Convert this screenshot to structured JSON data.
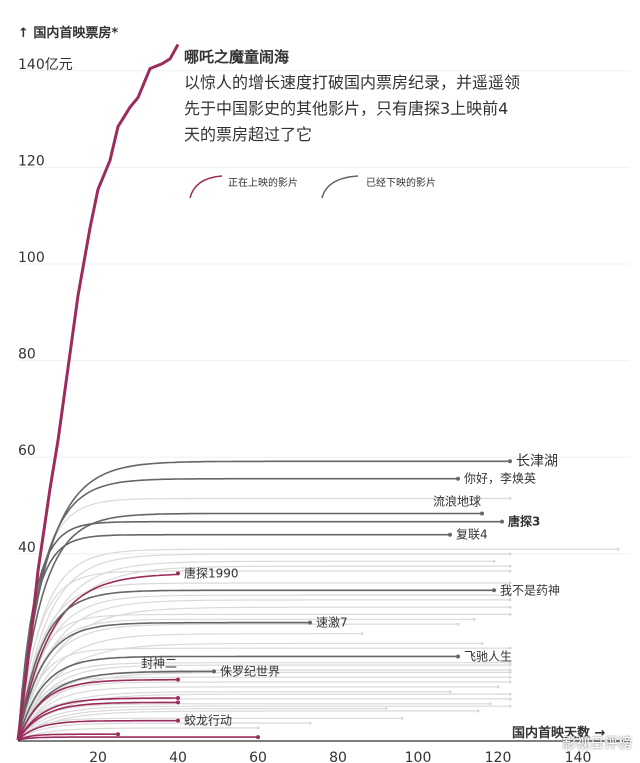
{
  "chart_data": {
    "type": "line",
    "title": "哪吒之魔童闹海",
    "subtitle": "以惊人的增长速度打破国内票房纪录，并遥遥领先于中国影史的其他影片，只有唐探3上映前4天的票房超过了它",
    "ylabel": "↑ 国内首映票房*",
    "xlabel": "国内首映天数 →",
    "xlim": [
      0,
      150
    ],
    "ylim": [
      0,
      145
    ],
    "xticks": [
      "20",
      "40",
      "60",
      "80",
      "100",
      "120",
      "140"
    ],
    "yticks": [
      {
        "v": 140,
        "t": "140亿元"
      },
      {
        "v": 120,
        "t": "120"
      },
      {
        "v": 100,
        "t": "100"
      },
      {
        "v": 80,
        "t": "80"
      },
      {
        "v": 60,
        "t": "60"
      },
      {
        "v": 40,
        "t": "40"
      }
    ],
    "legend": [
      "正在上映的影片",
      "已经下映的影片"
    ],
    "colors": {
      "current": "#9b2d5c",
      "past": "#666666",
      "background": "#d9d9d9"
    },
    "highlight": {
      "name": "哪吒之魔童闹海",
      "points": [
        [
          0,
          0
        ],
        [
          3,
          20
        ],
        [
          5,
          35
        ],
        [
          8,
          52
        ],
        [
          10,
          62
        ],
        [
          13,
          80
        ],
        [
          15,
          92
        ],
        [
          18,
          106
        ],
        [
          20,
          114
        ],
        [
          23,
          120
        ],
        [
          25,
          127
        ],
        [
          28,
          131
        ],
        [
          30,
          133
        ],
        [
          33,
          139
        ],
        [
          36,
          140
        ],
        [
          38,
          141
        ],
        [
          40,
          144
        ]
      ]
    },
    "series": [
      {
        "name": "长津湖",
        "end": 123,
        "final": 57.7,
        "tau": 7,
        "status": "past"
      },
      {
        "name": "你好，李焕英",
        "end": 110,
        "final": 54.1,
        "tau": 6,
        "status": "past"
      },
      {
        "name": "流浪地球",
        "end": 116,
        "final": 46.9,
        "tau": 6,
        "status": "past"
      },
      {
        "name": "唐探3",
        "end": 121,
        "final": 45.2,
        "tau": 4,
        "status": "past",
        "bold": true
      },
      {
        "name": "复联4",
        "end": 108,
        "final": 42.5,
        "tau": 4,
        "status": "past"
      },
      {
        "name": "唐探1990",
        "end": 40,
        "final": 34.5,
        "tau": 8,
        "status": "current"
      },
      {
        "name": "我不是药神",
        "end": 119,
        "final": 31.0,
        "tau": 6,
        "status": "past"
      },
      {
        "name": "速激7",
        "end": 73,
        "final": 24.3,
        "tau": 6,
        "status": "past"
      },
      {
        "name": "飞驰人生",
        "end": 110,
        "final": 17.3,
        "tau": 6,
        "status": "past"
      },
      {
        "name": "侏罗纪世界",
        "end": 49,
        "final": 14.2,
        "tau": 7,
        "status": "past"
      },
      {
        "name": "封神二",
        "end": 40,
        "final": 12.5,
        "tau": 6,
        "status": "current"
      },
      {
        "name": "蛟龙行动",
        "end": 40,
        "final": 4.0,
        "tau": 5,
        "status": "current"
      },
      {
        "name": "",
        "end": 40,
        "final": 8.7,
        "tau": 6,
        "status": "current"
      },
      {
        "name": "",
        "end": 40,
        "final": 7.8,
        "tau": 6,
        "status": "current"
      },
      {
        "name": "",
        "end": 25,
        "final": 1.2,
        "tau": 3,
        "status": "current"
      },
      {
        "name": "",
        "end": 60,
        "final": 0.6,
        "tau": 3,
        "status": "current"
      }
    ],
    "background": [
      [
        123,
        50
      ],
      [
        150,
        39.5
      ],
      [
        123,
        38.5
      ],
      [
        119,
        37
      ],
      [
        123,
        36
      ],
      [
        123,
        35
      ],
      [
        123,
        32.5
      ],
      [
        123,
        30
      ],
      [
        123,
        29
      ],
      [
        123,
        27.5
      ],
      [
        123,
        26
      ],
      [
        114,
        25
      ],
      [
        110,
        24
      ],
      [
        86,
        22
      ],
      [
        116,
        20
      ],
      [
        123,
        19
      ],
      [
        123,
        16
      ],
      [
        123,
        15.5
      ],
      [
        123,
        14.5
      ],
      [
        123,
        14
      ],
      [
        123,
        13
      ],
      [
        123,
        12
      ],
      [
        120,
        11
      ],
      [
        108,
        10
      ],
      [
        123,
        9.5
      ],
      [
        123,
        8.5
      ],
      [
        118,
        7.5
      ],
      [
        123,
        7
      ],
      [
        92,
        6.5
      ],
      [
        115,
        6
      ],
      [
        96,
        4.5
      ],
      [
        73,
        3.5
      ],
      [
        60,
        2.5
      ]
    ]
  },
  "watermark": "影视日评榜"
}
